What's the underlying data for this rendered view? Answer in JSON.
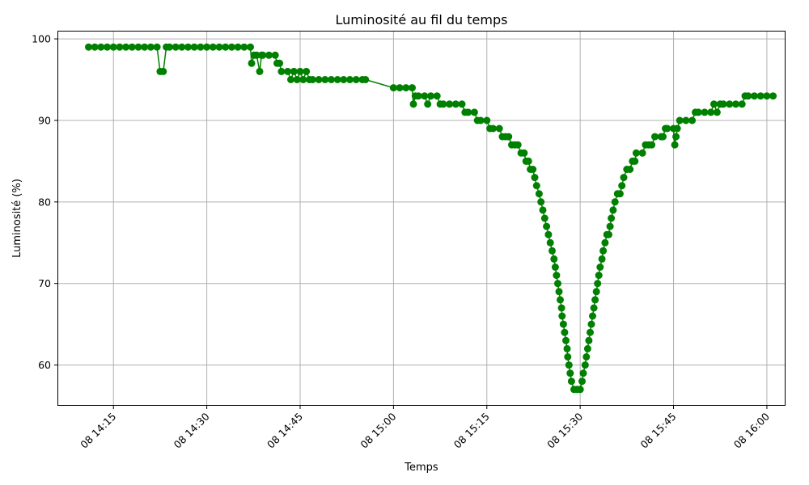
{
  "chart_data": {
    "type": "line",
    "title": "Luminosité au fil du temps",
    "xlabel": "Temps",
    "ylabel": "Luminosité (%)",
    "x_ticks": [
      "08 14:15",
      "08 14:30",
      "08 14:45",
      "08 15:00",
      "08 15:15",
      "08 15:30",
      "08 15:45",
      "08 16:00"
    ],
    "y_ticks": [
      60,
      70,
      80,
      90,
      100
    ],
    "xlim": [
      "14:06",
      "16:03"
    ],
    "ylim": [
      55,
      101
    ],
    "grid": true,
    "color": "#008000",
    "series": [
      {
        "points": [
          [
            "14:11",
            99
          ],
          [
            "14:12",
            99
          ],
          [
            "14:13",
            99
          ],
          [
            "14:14",
            99
          ],
          [
            "14:15",
            99
          ],
          [
            "14:16",
            99
          ],
          [
            "14:17",
            99
          ],
          [
            "14:18",
            99
          ],
          [
            "14:19",
            99
          ],
          [
            "14:20",
            99
          ],
          [
            "14:21",
            99
          ],
          [
            "14:22",
            99
          ],
          [
            "14:22.5",
            96
          ],
          [
            "14:23",
            96
          ],
          [
            "14:23.5",
            99
          ],
          [
            "14:24",
            99
          ],
          [
            "14:25",
            99
          ],
          [
            "14:26",
            99
          ],
          [
            "14:27",
            99
          ],
          [
            "14:28",
            99
          ],
          [
            "14:29",
            99
          ],
          [
            "14:30",
            99
          ],
          [
            "14:31",
            99
          ],
          [
            "14:32",
            99
          ],
          [
            "14:33",
            99
          ],
          [
            "14:34",
            99
          ],
          [
            "14:35",
            99
          ],
          [
            "14:36",
            99
          ],
          [
            "14:37",
            99
          ],
          [
            "14:37.2",
            97
          ],
          [
            "14:37.6",
            98
          ],
          [
            "14:38",
            98
          ],
          [
            "14:38.5",
            96
          ],
          [
            "14:38.8",
            98
          ],
          [
            "14:39",
            98
          ],
          [
            "14:40",
            98
          ],
          [
            "14:41",
            98
          ],
          [
            "14:41.3",
            97
          ],
          [
            "14:41.7",
            97
          ],
          [
            "14:42",
            96
          ],
          [
            "14:43",
            96
          ],
          [
            "14:43.5",
            95
          ],
          [
            "14:44",
            96
          ],
          [
            "14:44.5",
            95
          ],
          [
            "14:45",
            96
          ],
          [
            "14:45.5",
            95
          ],
          [
            "14:46",
            96
          ],
          [
            "14:46.5",
            95
          ],
          [
            "14:47",
            95
          ],
          [
            "14:48",
            95
          ],
          [
            "14:49",
            95
          ],
          [
            "14:50",
            95
          ],
          [
            "14:51",
            95
          ],
          [
            "14:52",
            95
          ],
          [
            "14:53",
            95
          ],
          [
            "14:54",
            95
          ],
          [
            "14:55",
            95
          ],
          [
            "14:55.5",
            95
          ],
          [
            "15:00",
            94
          ],
          [
            "15:01",
            94
          ],
          [
            "15:02",
            94
          ],
          [
            "15:03",
            94
          ],
          [
            "15:03.2",
            92
          ],
          [
            "15:03.5",
            93
          ],
          [
            "15:04",
            93
          ],
          [
            "15:05",
            93
          ],
          [
            "15:05.5",
            92
          ],
          [
            "15:06",
            93
          ],
          [
            "15:07",
            93
          ],
          [
            "15:07.5",
            92
          ],
          [
            "15:08",
            92
          ],
          [
            "15:09",
            92
          ],
          [
            "15:10",
            92
          ],
          [
            "15:11",
            92
          ],
          [
            "15:11.5",
            91
          ],
          [
            "15:12",
            91
          ],
          [
            "15:13",
            91
          ],
          [
            "15:13.5",
            90
          ],
          [
            "15:14",
            90
          ],
          [
            "15:15",
            90
          ],
          [
            "15:15.5",
            89
          ],
          [
            "15:16",
            89
          ],
          [
            "15:17",
            89
          ],
          [
            "15:17.5",
            88
          ],
          [
            "15:18",
            88
          ],
          [
            "15:18.5",
            88
          ],
          [
            "15:19",
            87
          ],
          [
            "15:19.5",
            87
          ],
          [
            "15:20",
            87
          ],
          [
            "15:20.5",
            86
          ],
          [
            "15:21",
            86
          ],
          [
            "15:21.3",
            85
          ],
          [
            "15:21.7",
            85
          ],
          [
            "15:22",
            84
          ],
          [
            "15:22.4",
            84
          ],
          [
            "15:22.7",
            83
          ],
          [
            "15:23",
            82
          ],
          [
            "15:23.4",
            81
          ],
          [
            "15:23.7",
            80
          ],
          [
            "15:24",
            79
          ],
          [
            "15:24.3",
            78
          ],
          [
            "15:24.6",
            77
          ],
          [
            "15:24.9",
            76
          ],
          [
            "15:25.2",
            75
          ],
          [
            "15:25.5",
            74
          ],
          [
            "15:25.8",
            73
          ],
          [
            "15:26",
            72
          ],
          [
            "15:26.2",
            71
          ],
          [
            "15:26.4",
            70
          ],
          [
            "15:26.6",
            69
          ],
          [
            "15:26.8",
            68
          ],
          [
            "15:27",
            67
          ],
          [
            "15:27.1",
            66
          ],
          [
            "15:27.3",
            65
          ],
          [
            "15:27.5",
            64
          ],
          [
            "15:27.7",
            63
          ],
          [
            "15:27.9",
            62
          ],
          [
            "15:28",
            61
          ],
          [
            "15:28.2",
            60
          ],
          [
            "15:28.4",
            59
          ],
          [
            "15:28.6",
            58
          ],
          [
            "15:29",
            57
          ],
          [
            "15:29.5",
            57
          ],
          [
            "15:30",
            57
          ],
          [
            "15:30.3",
            58
          ],
          [
            "15:30.5",
            59
          ],
          [
            "15:30.8",
            60
          ],
          [
            "15:31",
            61
          ],
          [
            "15:31.2",
            62
          ],
          [
            "15:31.4",
            63
          ],
          [
            "15:31.6",
            64
          ],
          [
            "15:31.8",
            65
          ],
          [
            "15:32",
            66
          ],
          [
            "15:32.2",
            67
          ],
          [
            "15:32.4",
            68
          ],
          [
            "15:32.6",
            69
          ],
          [
            "15:32.8",
            70
          ],
          [
            "15:33",
            71
          ],
          [
            "15:33.2",
            72
          ],
          [
            "15:33.5",
            73
          ],
          [
            "15:33.7",
            74
          ],
          [
            "15:34",
            75
          ],
          [
            "15:34.3",
            76
          ],
          [
            "15:34.6",
            76
          ],
          [
            "15:34.8",
            77
          ],
          [
            "15:35",
            78
          ],
          [
            "15:35.3",
            79
          ],
          [
            "15:35.6",
            80
          ],
          [
            "15:36",
            81
          ],
          [
            "15:36.4",
            81
          ],
          [
            "15:36.7",
            82
          ],
          [
            "15:37",
            83
          ],
          [
            "15:37.5",
            84
          ],
          [
            "15:38",
            84
          ],
          [
            "15:38.4",
            85
          ],
          [
            "15:38.8",
            85
          ],
          [
            "15:39",
            86
          ],
          [
            "15:40",
            86
          ],
          [
            "15:40.5",
            87
          ],
          [
            "15:41",
            87
          ],
          [
            "15:41.5",
            87
          ],
          [
            "15:42",
            88
          ],
          [
            "15:43",
            88
          ],
          [
            "15:43.3",
            88
          ],
          [
            "15:43.7",
            89
          ],
          [
            "15:44",
            89
          ],
          [
            "15:45",
            89
          ],
          [
            "15:45.2",
            87
          ],
          [
            "15:45.4",
            88
          ],
          [
            "15:45.6",
            89
          ],
          [
            "15:46",
            90
          ],
          [
            "15:47",
            90
          ],
          [
            "15:48",
            90
          ],
          [
            "15:48.5",
            91
          ],
          [
            "15:49",
            91
          ],
          [
            "15:50",
            91
          ],
          [
            "15:51",
            91
          ],
          [
            "15:51.5",
            92
          ],
          [
            "15:52",
            91
          ],
          [
            "15:52.5",
            92
          ],
          [
            "15:53",
            92
          ],
          [
            "15:54",
            92
          ],
          [
            "15:55",
            92
          ],
          [
            "15:56",
            92
          ],
          [
            "15:56.5",
            93
          ],
          [
            "15:57",
            93
          ],
          [
            "15:58",
            93
          ],
          [
            "15:59",
            93
          ],
          [
            "16:00",
            93
          ],
          [
            "16:01",
            93
          ]
        ]
      }
    ]
  }
}
